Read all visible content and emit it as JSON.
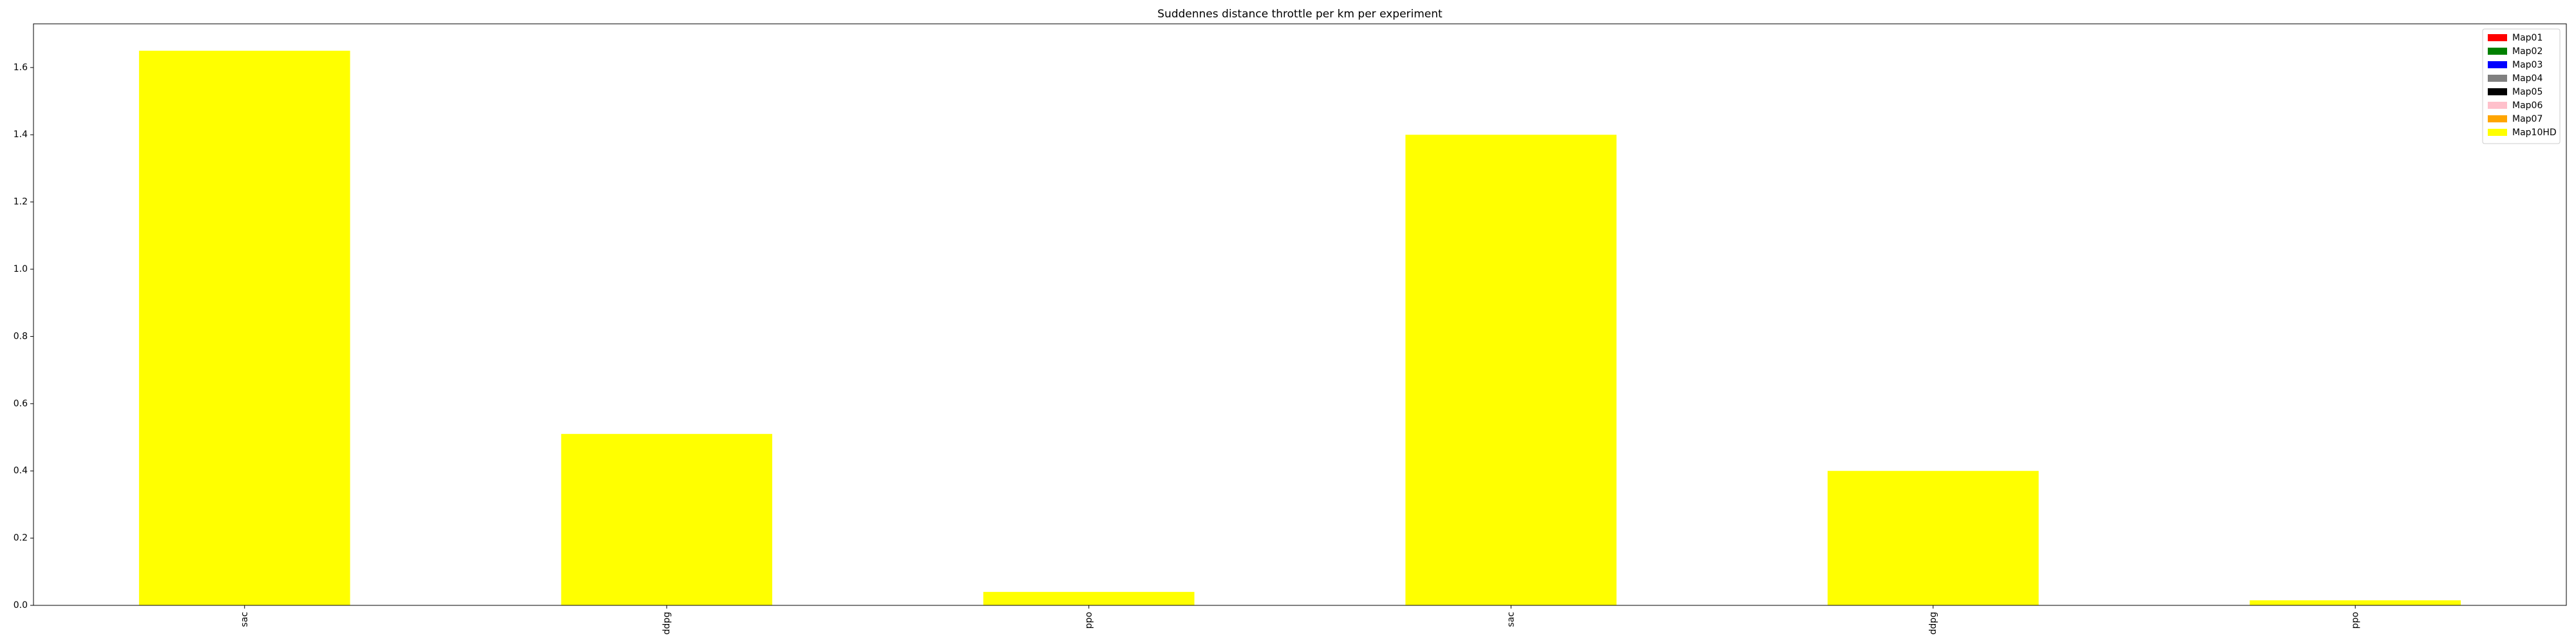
{
  "chart_data": {
    "type": "bar",
    "stacked": true,
    "title": "Suddennes distance throttle per km per experiment",
    "xlabel": "",
    "ylabel": "",
    "categories": [
      "sac",
      "ddpg",
      "ppo",
      "sac",
      "ddpg",
      "ppo"
    ],
    "ylim": [
      0,
      1.73
    ],
    "yticks": [
      0.0,
      0.2,
      0.4,
      0.6,
      0.8,
      1.0,
      1.2,
      1.4,
      1.6
    ],
    "grid": false,
    "legend_position": "top-right",
    "series": [
      {
        "name": "Map01",
        "color": "#ff0000",
        "values": [
          0,
          0,
          0,
          0,
          0,
          0
        ]
      },
      {
        "name": "Map02",
        "color": "#008000",
        "values": [
          0,
          0,
          0,
          0,
          0,
          0
        ]
      },
      {
        "name": "Map03",
        "color": "#0000ff",
        "values": [
          0,
          0,
          0,
          0,
          0,
          0
        ]
      },
      {
        "name": "Map04",
        "color": "#808080",
        "values": [
          0,
          0,
          0,
          0,
          0,
          0
        ]
      },
      {
        "name": "Map05",
        "color": "#000000",
        "values": [
          0,
          0,
          0,
          0,
          0,
          0
        ]
      },
      {
        "name": "Map06",
        "color": "#ffc0cb",
        "values": [
          0,
          0,
          0,
          0,
          0,
          0
        ]
      },
      {
        "name": "Map07",
        "color": "#ffa500",
        "values": [
          0,
          0,
          0,
          0,
          0,
          0
        ]
      },
      {
        "name": "Map10HD",
        "color": "#ffff00",
        "values": [
          1.65,
          0.51,
          0.04,
          1.4,
          0.4,
          0.015
        ]
      }
    ]
  }
}
